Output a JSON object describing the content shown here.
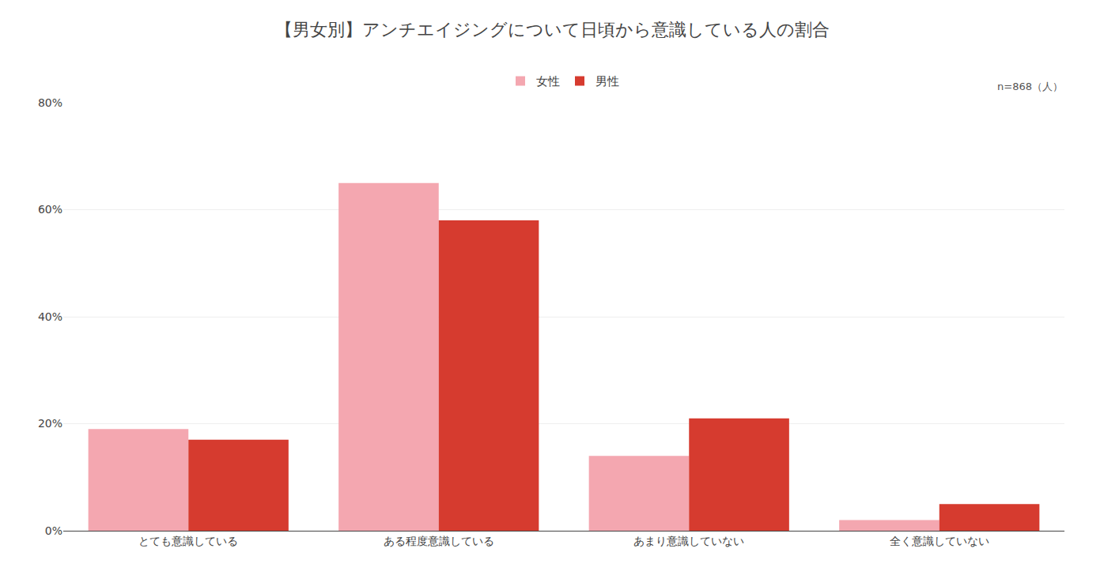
{
  "chart_data": {
    "type": "bar",
    "title": "【男女別】アンチエイジングについて日頃から意識している人の割合",
    "annotations": [
      "n=868（人）"
    ],
    "categories": [
      "とても意識している",
      "ある程度意識している",
      "あまり意識していない",
      "全く意識していない"
    ],
    "series": [
      {
        "name": "女性",
        "color": "#F4A7B0",
        "values": [
          19.0,
          65.0,
          14.0,
          2.0
        ]
      },
      {
        "name": "男性",
        "color": "#D63B2F",
        "values": [
          17.0,
          58.0,
          21.0,
          5.0
        ]
      }
    ],
    "ylim": [
      0,
      80
    ],
    "yticks": [
      {
        "value": 0,
        "label": "0%"
      },
      {
        "value": 20,
        "label": "20%"
      },
      {
        "value": 40,
        "label": "40%"
      },
      {
        "value": 60,
        "label": "60%"
      },
      {
        "value": 80,
        "label": "80%"
      }
    ],
    "grid": true,
    "legend": "top"
  }
}
